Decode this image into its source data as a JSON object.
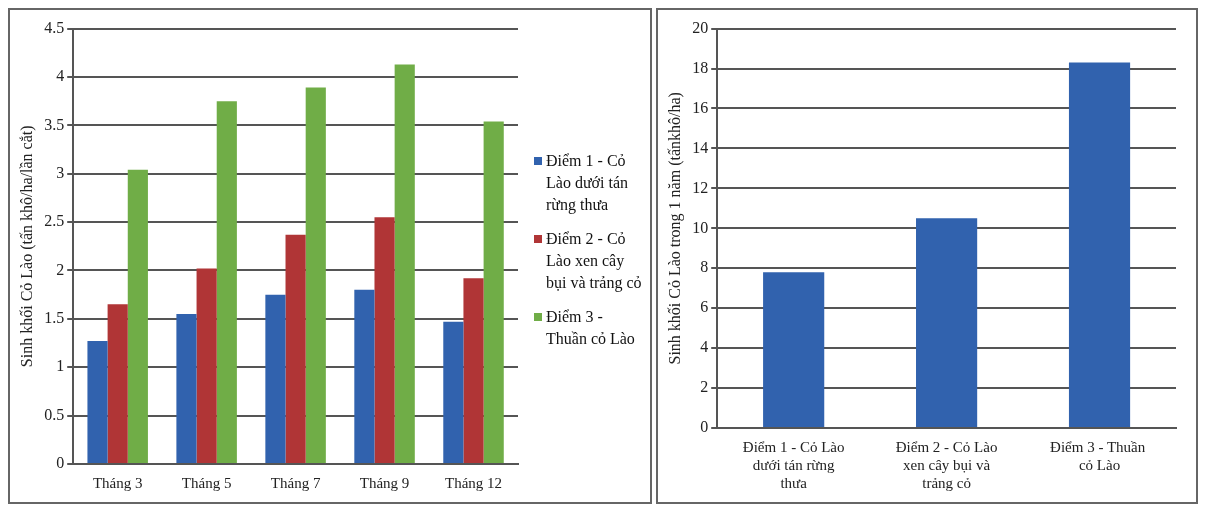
{
  "chart_data": [
    {
      "type": "bar",
      "ylabel": "Sinh khối Cỏ Lào (tấn khô/ha/lần cắt)",
      "categories": [
        "Tháng 3",
        "Tháng 5",
        "Tháng 7",
        "Tháng 9",
        "Tháng 12"
      ],
      "series": [
        {
          "name": "Điểm 1 - Cỏ Lào dưới tán rừng thưa",
          "color": "#3162ae",
          "values": [
            1.27,
            1.55,
            1.75,
            1.8,
            1.47
          ]
        },
        {
          "name": "Điểm 2 - Cỏ Lào xen cây bụi và trảng cỏ",
          "color": "#b03536",
          "values": [
            1.65,
            2.02,
            2.37,
            2.55,
            1.92
          ]
        },
        {
          "name": "Điểm 3 - Thuần cỏ Lào",
          "color": "#70ad47",
          "values": [
            3.04,
            3.75,
            3.89,
            4.13,
            3.54
          ]
        }
      ],
      "ylim": [
        0,
        4.5
      ],
      "yticks": [
        0,
        0.5,
        1,
        1.5,
        2,
        2.5,
        3,
        3.5,
        4,
        4.5
      ],
      "grid": "y",
      "legend": "right"
    },
    {
      "type": "bar",
      "ylabel": "Sinh khối Cỏ Lào trong 1 năm (tấnkhô/ha)",
      "categories": [
        "Điểm 1 - Cỏ Lào dưới tán rừng thưa",
        "Điểm 2 - Cỏ Lào xen cây bụi và trảng cỏ",
        "Điểm 3 - Thuần  cỏ Lào"
      ],
      "series": [
        {
          "color": "#3162ae",
          "values": [
            7.8,
            10.5,
            18.3
          ]
        }
      ],
      "ylim": [
        0,
        20
      ],
      "yticks": [
        0,
        2,
        4,
        6,
        8,
        10,
        12,
        14,
        16,
        18,
        20
      ],
      "grid": "y"
    }
  ]
}
